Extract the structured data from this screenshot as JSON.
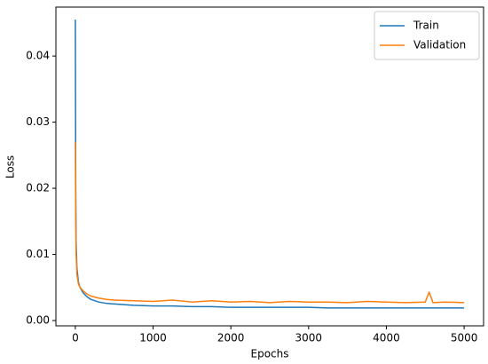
{
  "chart_data": {
    "type": "line",
    "x_label": "Epochs",
    "y_label": "Loss",
    "x": [
      0,
      5,
      10,
      20,
      40,
      60,
      100,
      150,
      200,
      300,
      400,
      500,
      750,
      1000,
      1250,
      1500,
      1750,
      2000,
      2250,
      2500,
      2750,
      3000,
      3250,
      3500,
      3750,
      4000,
      4250,
      4500,
      4550,
      4600,
      4750,
      5000
    ],
    "series": [
      {
        "name": "Train",
        "color": "#1f77b4",
        "values": [
          0.0455,
          0.02,
          0.012,
          0.008,
          0.0058,
          0.005,
          0.0042,
          0.0036,
          0.0032,
          0.0028,
          0.0026,
          0.0025,
          0.0023,
          0.0022,
          0.0022,
          0.0021,
          0.0021,
          0.002,
          0.002,
          0.002,
          0.002,
          0.002,
          0.0019,
          0.0019,
          0.0019,
          0.0019,
          0.0019,
          0.0019,
          0.0019,
          0.0019,
          0.0019,
          0.0019
        ]
      },
      {
        "name": "Validation",
        "color": "#ff7f0e",
        "values": [
          0.027,
          0.015,
          0.01,
          0.007,
          0.0055,
          0.005,
          0.0045,
          0.004,
          0.0037,
          0.0034,
          0.0032,
          0.0031,
          0.003,
          0.0029,
          0.0031,
          0.0028,
          0.003,
          0.0028,
          0.0029,
          0.0027,
          0.0029,
          0.0028,
          0.0028,
          0.0027,
          0.0029,
          0.0028,
          0.0027,
          0.0028,
          0.0043,
          0.0027,
          0.0028,
          0.0027
        ]
      }
    ],
    "xlim": [
      -250,
      5250
    ],
    "ylim": [
      -0.0008,
      0.0474
    ],
    "xticks": [
      0,
      1000,
      2000,
      3000,
      4000,
      5000
    ],
    "yticks": [
      {
        "value": 0,
        "label": "0.00"
      },
      {
        "value": 0.01,
        "label": "0.01"
      },
      {
        "value": 0.02,
        "label": "0.02"
      },
      {
        "value": 0.03,
        "label": "0.03"
      },
      {
        "value": 0.04,
        "label": "0.04"
      }
    ],
    "legend": "upper right"
  }
}
